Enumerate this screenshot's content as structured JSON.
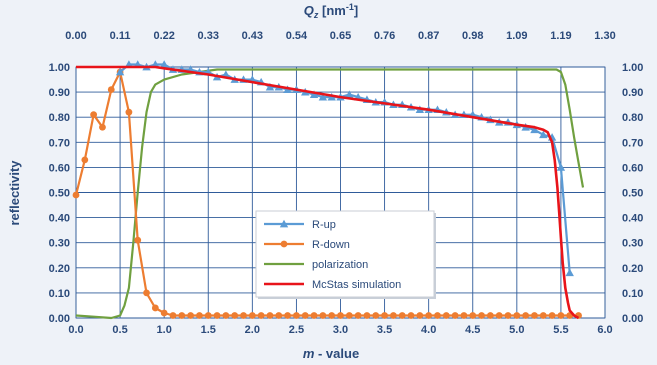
{
  "chart_data": {
    "type": "line",
    "xlabel_italic": "m",
    "xlabel_rest": " - value",
    "ylabel": "reflectivity",
    "x2label_base": "Q",
    "x2label_sub": "z",
    "x2label_unit_pre": " [nm",
    "x2label_unit_sup": "-1",
    "x2label_unit_post": "]",
    "xlim": [
      0.0,
      6.0
    ],
    "ylim": [
      0.0,
      1.0
    ],
    "x_ticks": [
      "0.0",
      "0.5",
      "1.0",
      "1.5",
      "2.0",
      "2.5",
      "3.0",
      "3.5",
      "4.0",
      "4.5",
      "5.0",
      "5.5",
      "6.0"
    ],
    "x2_ticks": [
      "0.00",
      "0.11",
      "0.22",
      "0.33",
      "0.43",
      "0.54",
      "0.65",
      "0.76",
      "0.87",
      "0.98",
      "1.09",
      "1.19",
      "1.30"
    ],
    "y_ticks": [
      "0.00",
      "0.10",
      "0.20",
      "0.30",
      "0.40",
      "0.50",
      "0.60",
      "0.70",
      "0.80",
      "0.90",
      "1.00"
    ],
    "grid": true,
    "legend_position": "center-bottom",
    "series": [
      {
        "name": "R-up",
        "color": "#5b9bd5",
        "marker": "triangle",
        "x": [
          0.5,
          0.6,
          0.7,
          0.8,
          0.9,
          1.0,
          1.1,
          1.2,
          1.3,
          1.4,
          1.5,
          1.6,
          1.7,
          1.8,
          1.9,
          2.0,
          2.1,
          2.2,
          2.3,
          2.4,
          2.5,
          2.6,
          2.7,
          2.8,
          2.9,
          3.0,
          3.1,
          3.2,
          3.3,
          3.4,
          3.5,
          3.6,
          3.7,
          3.8,
          3.9,
          4.0,
          4.1,
          4.2,
          4.3,
          4.4,
          4.5,
          4.6,
          4.7,
          4.8,
          4.9,
          5.0,
          5.1,
          5.2,
          5.3,
          5.4,
          5.5,
          5.6
        ],
        "y": [
          0.98,
          1.01,
          1.01,
          1.0,
          1.01,
          1.01,
          0.99,
          0.99,
          0.99,
          0.98,
          0.98,
          0.96,
          0.97,
          0.95,
          0.95,
          0.95,
          0.94,
          0.92,
          0.92,
          0.91,
          0.91,
          0.9,
          0.89,
          0.88,
          0.88,
          0.88,
          0.89,
          0.88,
          0.87,
          0.86,
          0.86,
          0.85,
          0.85,
          0.84,
          0.83,
          0.83,
          0.83,
          0.82,
          0.81,
          0.81,
          0.81,
          0.8,
          0.79,
          0.78,
          0.78,
          0.77,
          0.76,
          0.75,
          0.73,
          0.72,
          0.6,
          0.18
        ]
      },
      {
        "name": "R-down",
        "color": "#ed7d31",
        "marker": "circle",
        "x": [
          0.0,
          0.1,
          0.2,
          0.3,
          0.4,
          0.5,
          0.6,
          0.7,
          0.8,
          0.9,
          1.0,
          1.1,
          1.2,
          1.3,
          1.4,
          1.5,
          1.6,
          1.7,
          1.8,
          1.9,
          2.0,
          2.1,
          2.2,
          2.3,
          2.4,
          2.5,
          2.6,
          2.7,
          2.8,
          2.9,
          3.0,
          3.1,
          3.2,
          3.3,
          3.4,
          3.5,
          3.6,
          3.7,
          3.8,
          3.9,
          4.0,
          4.1,
          4.2,
          4.3,
          4.4,
          4.5,
          4.6,
          4.7,
          4.8,
          4.9,
          5.0,
          5.1,
          5.2,
          5.3,
          5.4,
          5.5,
          5.6,
          5.7
        ],
        "y": [
          0.49,
          0.63,
          0.81,
          0.76,
          0.91,
          0.98,
          0.82,
          0.31,
          0.1,
          0.04,
          0.02,
          0.01,
          0.01,
          0.01,
          0.01,
          0.01,
          0.01,
          0.01,
          0.01,
          0.01,
          0.01,
          0.01,
          0.01,
          0.01,
          0.01,
          0.01,
          0.01,
          0.01,
          0.01,
          0.01,
          0.01,
          0.01,
          0.01,
          0.01,
          0.01,
          0.01,
          0.01,
          0.01,
          0.01,
          0.01,
          0.01,
          0.01,
          0.01,
          0.01,
          0.01,
          0.01,
          0.01,
          0.01,
          0.01,
          0.01,
          0.01,
          0.01,
          0.01,
          0.01,
          0.01,
          0.01,
          0.01,
          0.01
        ]
      },
      {
        "name": "polarization",
        "color": "#70a040",
        "marker": "none",
        "x": [
          0.0,
          0.2,
          0.4,
          0.5,
          0.55,
          0.6,
          0.65,
          0.7,
          0.75,
          0.8,
          0.85,
          0.9,
          1.0,
          1.2,
          1.4,
          1.6,
          1.8,
          2.0,
          2.5,
          3.0,
          3.5,
          4.0,
          4.5,
          5.0,
          5.3,
          5.45,
          5.5,
          5.55,
          5.6,
          5.65,
          5.7,
          5.75
        ],
        "y": [
          0.01,
          0.005,
          0.0,
          0.01,
          0.05,
          0.12,
          0.3,
          0.5,
          0.68,
          0.82,
          0.9,
          0.93,
          0.95,
          0.97,
          0.98,
          0.99,
          0.99,
          0.99,
          0.99,
          0.99,
          0.99,
          0.99,
          0.99,
          0.99,
          0.99,
          0.99,
          0.98,
          0.93,
          0.83,
          0.72,
          0.62,
          0.52
        ]
      },
      {
        "name": "McStas simulation",
        "color": "#e8141a",
        "marker": "none",
        "x": [
          0.0,
          0.3,
          0.6,
          0.9,
          1.0,
          1.5,
          2.0,
          2.5,
          3.0,
          3.5,
          4.0,
          4.5,
          5.0,
          5.2,
          5.3,
          5.35,
          5.4,
          5.43,
          5.46,
          5.48,
          5.5,
          5.52,
          5.55,
          5.58,
          5.6,
          5.65,
          5.7
        ],
        "y": [
          1.0,
          1.0,
          1.0,
          1.0,
          0.995,
          0.97,
          0.94,
          0.91,
          0.88,
          0.855,
          0.83,
          0.8,
          0.77,
          0.76,
          0.75,
          0.74,
          0.7,
          0.63,
          0.52,
          0.42,
          0.32,
          0.22,
          0.12,
          0.06,
          0.03,
          0.01,
          0.0
        ]
      }
    ]
  }
}
